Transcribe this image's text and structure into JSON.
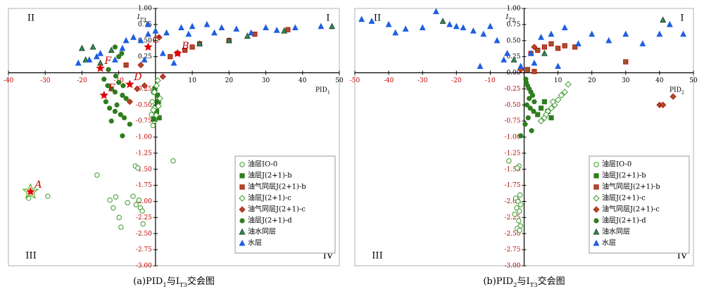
{
  "chart_data": [
    {
      "type": "scatter",
      "caption": [
        {
          "text": "(a)PID"
        },
        {
          "text": "1",
          "sub": true
        },
        {
          "text": "与"
        },
        {
          "text": "I"
        },
        {
          "text": "T3",
          "sub": true
        },
        {
          "text": "交会图"
        }
      ],
      "x_label": [
        {
          "text": "PID"
        },
        {
          "text": "1",
          "sub": true
        }
      ],
      "y_label": [
        {
          "text": "I"
        },
        {
          "text": "T3",
          "sub": true
        }
      ],
      "quadrant_labels": [
        "I",
        "II",
        "III",
        "IV"
      ],
      "xlim": [
        -40,
        50
      ],
      "ylim": [
        -3,
        1
      ],
      "xticks": [
        -40,
        -30,
        -20,
        -10,
        10,
        20,
        30,
        40,
        50
      ],
      "yticks": [
        {
          "value": 1,
          "label": "1.00"
        },
        {
          "value": 0.75,
          "label": "0.75"
        },
        {
          "value": 0.5,
          "label": "0.50"
        },
        {
          "value": 0.25,
          "label": "0.25"
        },
        {
          "value": -0.25,
          "label": "-0.25"
        },
        {
          "value": -0.5,
          "label": "-0.50"
        },
        {
          "value": -0.75,
          "label": "-0.75"
        },
        {
          "value": -1,
          "label": "-1.00"
        },
        {
          "value": -1.25,
          "label": "-1.25"
        },
        {
          "value": -1.5,
          "label": "-1.50"
        },
        {
          "value": -1.75,
          "label": "-1.75"
        },
        {
          "value": -2,
          "label": "-2.00"
        },
        {
          "value": -2.25,
          "label": "-2.25"
        },
        {
          "value": -2.5,
          "label": "-2.50"
        },
        {
          "value": -2.75,
          "label": "-2.75"
        },
        {
          "value": -3,
          "label": "-3.00"
        }
      ],
      "grid": false,
      "legend": "lower-right",
      "series": [
        {
          "name": "油层IO-0",
          "marker": "circle-open",
          "color": "#3a9a2a",
          "x": [
            -34.5,
            -29.3,
            -15.9,
            -12.4,
            -10.8,
            -11.5,
            -9.9,
            -9.4,
            -7.6,
            -5.5,
            -4.8,
            -6.1,
            -5.3,
            -4.1,
            -3.6,
            -4.5,
            -3.4,
            4.8,
            -0.6,
            -0.9,
            -0.4,
            -1.1,
            -0.3,
            -0.7
          ],
          "y": [
            -1.95,
            -1.92,
            -1.59,
            -1.98,
            -1.93,
            -2.1,
            -2.25,
            -2.4,
            -2.02,
            -1.45,
            -1.48,
            -1.92,
            -2.05,
            -2.1,
            -2.15,
            -1.98,
            -2.35,
            -1.37,
            -0.3,
            -0.45,
            -0.55,
            -0.65,
            -0.75,
            -0.82
          ]
        },
        {
          "name": "油层J(2+1)-b",
          "marker": "square",
          "color": "#2e7d1e",
          "x": [
            0.5,
            0.8,
            0.3,
            1.0,
            -0.5,
            -0.2
          ],
          "y": [
            -0.35,
            -0.45,
            -0.6,
            -0.7,
            -0.72,
            -0.25
          ]
        },
        {
          "name": "油气同层J(2+1)-b",
          "marker": "square",
          "color": "#a0522d",
          "edgecolor": "#c00000",
          "x": [
            4,
            6,
            8,
            10,
            12,
            20,
            27,
            36,
            -8
          ],
          "y": [
            0.25,
            0.3,
            0.35,
            0.4,
            0.45,
            0.5,
            0.6,
            0.67,
            0.12
          ]
        },
        {
          "name": "油层J(2+1)-c",
          "marker": "diamond-open",
          "color": "#3a9a2a",
          "x": [
            0.6,
            0.3,
            -0.3,
            1.2,
            0.8,
            -0.6,
            0.2
          ],
          "y": [
            -0.12,
            -0.2,
            -0.3,
            -0.4,
            -0.52,
            -0.58,
            -0.66
          ]
        },
        {
          "name": "油气同层J(2+1)-c",
          "marker": "diamond",
          "color": "#a0522d",
          "edgecolor": "#c00000",
          "x": [
            -5,
            -3,
            -7,
            1,
            -4,
            2
          ],
          "y": [
            -0.25,
            -0.2,
            -0.45,
            0.55,
            0.12,
            -0.06
          ]
        },
        {
          "name": "油层J(2+1)-d",
          "marker": "circle",
          "color": "#2e7d1e",
          "x": [
            -14,
            -13,
            -12,
            -11,
            -10,
            -9,
            -8,
            -13.5,
            -12.5,
            -11,
            -10.5,
            -9.5,
            -8.5,
            -12,
            -9,
            -11,
            -10,
            -7,
            -12.8,
            -10.8,
            -8.8,
            -9.2
          ],
          "y": [
            -0.1,
            -0.2,
            -0.25,
            -0.3,
            -0.15,
            -0.35,
            -0.4,
            -0.45,
            -0.55,
            -0.6,
            -0.5,
            -0.65,
            -0.7,
            -0.75,
            -0.98,
            0.4,
            0.25,
            -0.8,
            0.05,
            -0.05,
            -0.2,
            0.3
          ]
        },
        {
          "name": "油水同层",
          "marker": "triangle",
          "color": "#2e8b57",
          "edgecolor": "#1a3a1a",
          "x": [
            -19,
            -20,
            -17,
            -12,
            -15,
            12,
            20,
            25,
            35,
            48
          ],
          "y": [
            0.2,
            0.38,
            0.4,
            0.35,
            0.15,
            0.45,
            0.5,
            0.57,
            0.65,
            0.72
          ]
        },
        {
          "name": "水层",
          "marker": "triangle",
          "color": "#1f5fe0",
          "x": [
            -21,
            -18,
            -15,
            -9,
            -8,
            -6,
            -4,
            -2,
            0,
            3,
            7,
            10,
            14,
            18,
            22,
            30,
            38,
            45,
            2,
            5,
            -3,
            -2,
            -16,
            -11,
            9,
            16,
            26,
            33
          ],
          "y": [
            0.15,
            0.2,
            0.3,
            0.38,
            0.5,
            0.55,
            0.5,
            0.6,
            0.65,
            0.62,
            0.7,
            0.72,
            0.75,
            0.7,
            0.68,
            0.7,
            0.7,
            0.72,
            0.3,
            0.15,
            0.2,
            0.75,
            0.25,
            0.2,
            0.6,
            0.62,
            0.62,
            0.66
          ]
        }
      ],
      "annotations": [
        {
          "text": "A",
          "x": -34,
          "y": -1.85
        },
        {
          "text": "B",
          "x": 6,
          "y": 0.3
        },
        {
          "text": "C",
          "x": -2,
          "y": 0.4
        },
        {
          "text": "D",
          "x": -7,
          "y": -0.18
        },
        {
          "text": "E",
          "x": -14,
          "y": -0.35
        },
        {
          "text": "F",
          "x": -15,
          "y": 0.07
        }
      ]
    },
    {
      "type": "scatter",
      "caption": [
        {
          "text": "(b)PID"
        },
        {
          "text": "2",
          "sub": true
        },
        {
          "text": "与"
        },
        {
          "text": "I"
        },
        {
          "text": "T3",
          "sub": true
        },
        {
          "text": "交会图"
        }
      ],
      "x_label": [
        {
          "text": "PID"
        },
        {
          "text": "2",
          "sub": true
        }
      ],
      "y_label": [
        {
          "text": "I"
        },
        {
          "text": "T3",
          "sub": true
        }
      ],
      "quadrant_labels": [
        "I",
        "II",
        "III",
        "IV"
      ],
      "xlim": [
        -50,
        50
      ],
      "ylim": [
        -3,
        1
      ],
      "xticks": [
        -50,
        -40,
        -30,
        -20,
        -10,
        10,
        20,
        30,
        40,
        50
      ],
      "yticks": [
        {
          "value": 1,
          "label": "1.00"
        },
        {
          "value": 0.75,
          "label": "0.75"
        },
        {
          "value": 0.5,
          "label": "0.50"
        },
        {
          "value": 0.25,
          "label": "0.25"
        },
        {
          "value": 0,
          "label": "0.00"
        },
        {
          "value": -0.25,
          "label": "-0.25"
        },
        {
          "value": -0.5,
          "label": "-0.50"
        },
        {
          "value": -0.75,
          "label": "-0.75"
        },
        {
          "value": -1,
          "label": "-1.00"
        },
        {
          "value": -1.25,
          "label": "-1.25"
        },
        {
          "value": -1.5,
          "label": "-1.50"
        },
        {
          "value": -1.75,
          "label": "-1.75"
        },
        {
          "value": -2,
          "label": "-2.00"
        },
        {
          "value": -2.25,
          "label": "-2.25"
        },
        {
          "value": -2.5,
          "label": "-2.50"
        },
        {
          "value": -2.75,
          "label": "-2.75"
        },
        {
          "value": -3,
          "label": "-3.00"
        }
      ],
      "grid": false,
      "legend": "lower-right",
      "series": [
        {
          "name": "油层IO-0",
          "marker": "circle-open",
          "color": "#3a9a2a",
          "x": [
            -4.5,
            -1.5,
            -2.0,
            -1.2,
            -2.5,
            -1.8,
            -1.0,
            -2.2,
            -1.4,
            -2.8,
            -1.6,
            -1.1,
            -2.0,
            -1.3
          ],
          "y": [
            -1.37,
            -1.45,
            -1.48,
            -1.9,
            -1.95,
            -2.0,
            -2.05,
            -2.1,
            -2.15,
            -2.2,
            -2.3,
            -2.38,
            -2.42,
            -2.45
          ]
        },
        {
          "name": "油层J(2+1)-b",
          "marker": "square",
          "color": "#2e7d1e",
          "x": [
            5,
            7,
            8,
            4,
            6
          ],
          "y": [
            -0.55,
            -0.6,
            -0.7,
            -0.65,
            -0.45
          ]
        },
        {
          "name": "油气同层J(2+1)-b",
          "marker": "square",
          "color": "#a0522d",
          "edgecolor": "#c00000",
          "x": [
            2,
            4,
            6,
            8,
            10,
            12,
            15,
            30,
            1,
            3
          ],
          "y": [
            0.3,
            0.35,
            0.4,
            0.45,
            0.38,
            0.42,
            0.4,
            0.17,
            0.05,
            0.02
          ]
        },
        {
          "name": "油层J(2+1)-c",
          "marker": "diamond-open",
          "color": "#3a9a2a",
          "x": [
            5,
            6,
            7,
            8,
            9,
            10,
            11,
            12,
            13,
            6.5,
            8.5
          ],
          "y": [
            -0.75,
            -0.7,
            -0.6,
            -0.55,
            -0.5,
            -0.42,
            -0.35,
            -0.3,
            -0.18,
            -0.65,
            -0.45
          ]
        },
        {
          "name": "油气同层J(2+1)-c",
          "marker": "diamond",
          "color": "#a0522d",
          "edgecolor": "#c00000",
          "x": [
            40,
            41,
            44,
            3,
            -1
          ],
          "y": [
            -0.5,
            -0.5,
            -0.37,
            0.4,
            0.05
          ]
        },
        {
          "name": "油层J(2+1)-d",
          "marker": "circle",
          "color": "#2e7d1e",
          "x": [
            0.5,
            1,
            1.5,
            2,
            2.5,
            3,
            0.8,
            1.8,
            2.8,
            1.2,
            0.3,
            2.2,
            -1,
            1.5,
            0.6
          ],
          "y": [
            -0.1,
            -0.2,
            -0.25,
            -0.3,
            -0.35,
            -0.45,
            -0.5,
            -0.55,
            -0.6,
            -0.7,
            -0.8,
            -0.9,
            -0.98,
            -0.4,
            -0.15
          ]
        },
        {
          "name": "油水同层",
          "marker": "triangle",
          "color": "#2e8b57",
          "edgecolor": "#1a3a1a",
          "x": [
            -24,
            41,
            -3,
            6
          ],
          "y": [
            0.8,
            0.82,
            0.2,
            0.3
          ]
        },
        {
          "name": "水层",
          "marker": "triangle",
          "color": "#1f5fe0",
          "x": [
            -48,
            -45,
            -40,
            -35,
            -30,
            -26,
            -22,
            -18,
            -15,
            -12,
            -10,
            -8,
            -6,
            -13,
            -5,
            2,
            5,
            8,
            12,
            20,
            25,
            30,
            35,
            40,
            43,
            47,
            -1,
            3,
            10,
            -20,
            -38,
            16
          ],
          "y": [
            0.83,
            0.8,
            0.75,
            0.68,
            0.7,
            0.95,
            0.75,
            0.7,
            0.65,
            0.6,
            0.72,
            0.5,
            0.2,
            0.1,
            0.3,
            0.3,
            0.55,
            0.6,
            0.7,
            0.6,
            0.5,
            0.6,
            0.45,
            0.6,
            0.75,
            0.6,
            0.1,
            0.15,
            0.1,
            0.72,
            0.62,
            0.45
          ]
        }
      ],
      "annotations": []
    }
  ]
}
